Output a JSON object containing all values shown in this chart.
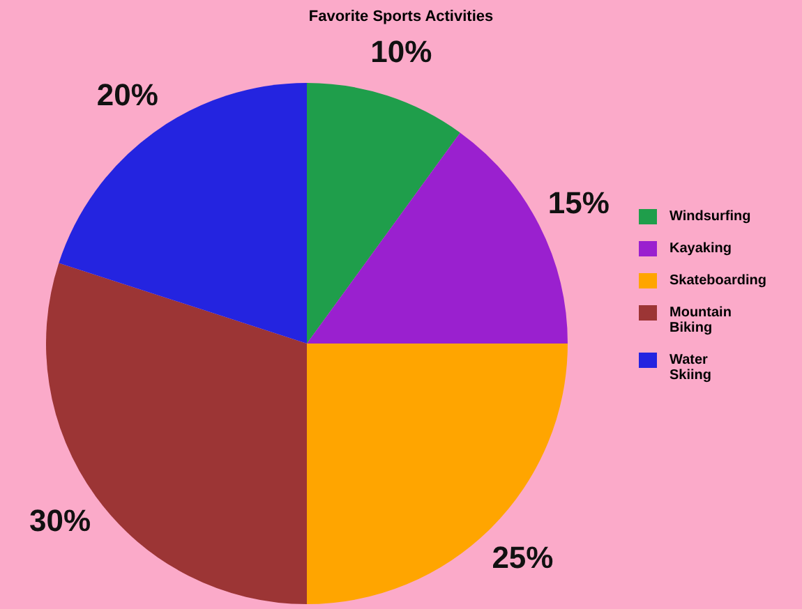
{
  "chart_data": {
    "type": "pie",
    "title": "Favorite Sports Activities",
    "categories": [
      "Windsurfing",
      "Kayaking",
      "Skateboarding",
      "Mountain Biking",
      "Water Skiing"
    ],
    "values": [
      10,
      15,
      25,
      30,
      20
    ],
    "colors": [
      "#1f9e4b",
      "#9a20cf",
      "#ffa500",
      "#9c3535",
      "#2424e0"
    ],
    "value_labels": [
      "10%",
      "15%",
      "25%",
      "30%",
      "20%"
    ],
    "legend": "right"
  }
}
